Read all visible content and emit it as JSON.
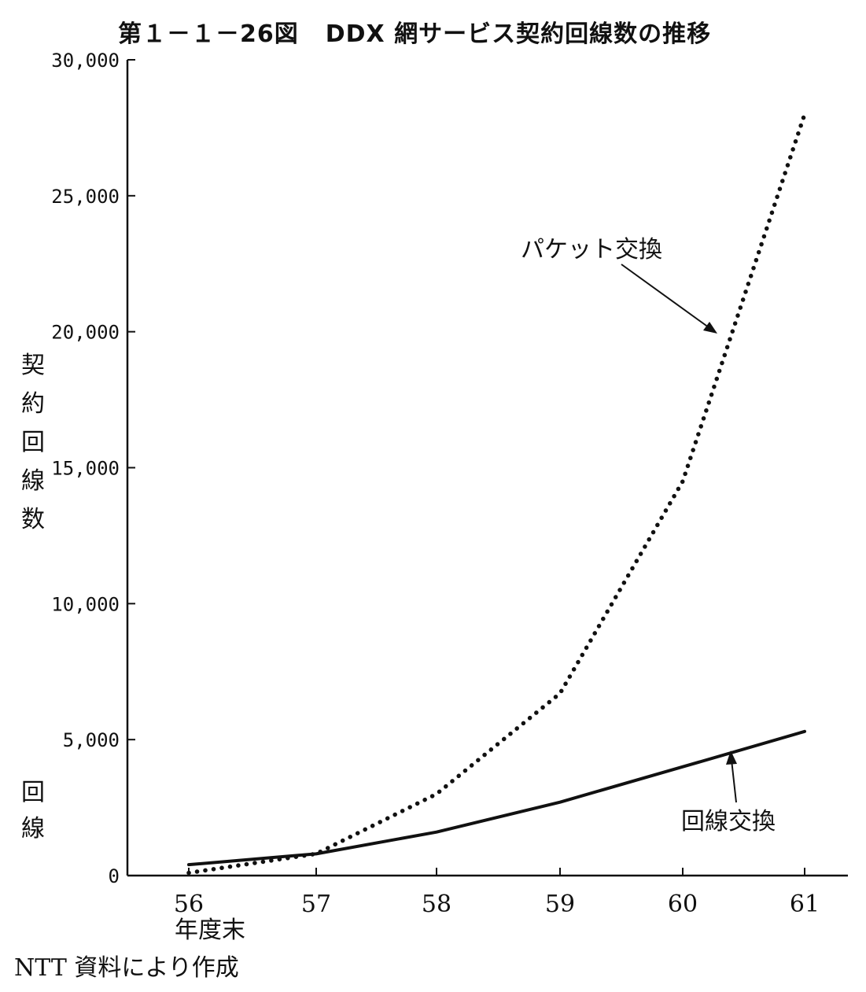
{
  "figure": {
    "number": "第１－１－26図",
    "title": "DDX 網サービス契約回線数の推移",
    "ylabel": "契\n約\n回\n線\n数",
    "yunit": "回\n線",
    "xunit": "年度末",
    "source": "NTT 資料により作成"
  },
  "chart_data": {
    "type": "line",
    "title": "DDX 網サービス契約回線数の推移",
    "xlabel": "年度末",
    "ylabel": "契約回線数 (回線)",
    "x": [
      "56",
      "57",
      "58",
      "59",
      "60",
      "61"
    ],
    "ylim": [
      0,
      30000
    ],
    "yticks": [
      0,
      5000,
      10000,
      15000,
      20000,
      25000,
      30000
    ],
    "ytick_labels": [
      "0",
      "5,000",
      "10,000",
      "15,000",
      "20,000",
      "25,000",
      "30,000"
    ],
    "grid": false,
    "legend": "none (direct labels with arrows)",
    "series": [
      {
        "name": "パケット交換",
        "style": "dotted",
        "color": "#111111",
        "values": [
          100,
          800,
          3000,
          6700,
          14500,
          28000
        ]
      },
      {
        "name": "回線交換",
        "style": "solid",
        "color": "#111111",
        "values": [
          400,
          800,
          1600,
          2700,
          4000,
          5300
        ]
      }
    ]
  }
}
